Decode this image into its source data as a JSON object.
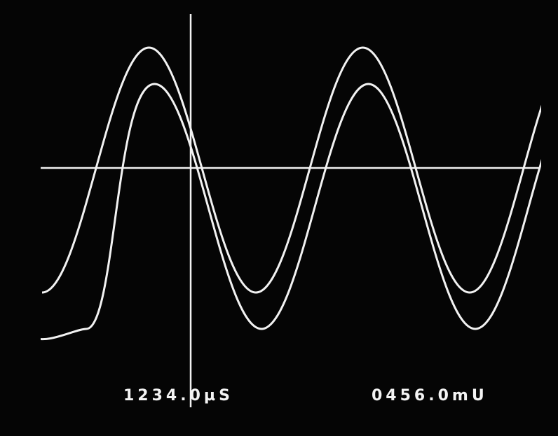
{
  "readouts": {
    "time": "1234.0µS",
    "voltage": "0456.0mU"
  }
}
